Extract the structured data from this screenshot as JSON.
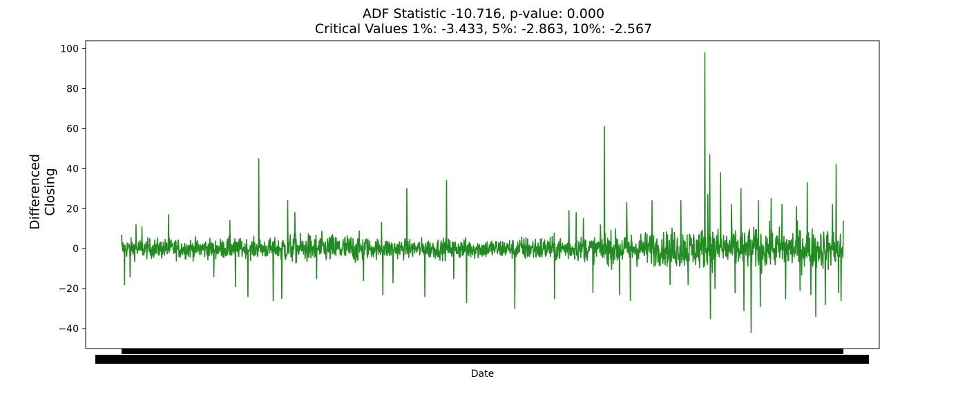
{
  "chart_data": {
    "type": "line",
    "title": [
      "ADF Statistic -10.716, p-value: 0.000",
      "Critical Values 1%: -3.433, 5%: -2.863, 10%: -2.567"
    ],
    "xlabel": "Date",
    "ylabel": [
      "Differenced",
      "Closing"
    ],
    "ylim": [
      -50,
      104
    ],
    "yticks": [
      -40,
      -20,
      0,
      20,
      40,
      60,
      80,
      100
    ],
    "ytick_labels": [
      "−40",
      "−20",
      "0",
      "20",
      "40",
      "60",
      "80",
      "100"
    ],
    "x_tick_labels_note": "x tick labels overlap into a solid black band (unreadable)",
    "grid": false,
    "color": "#228B22",
    "n_points": 2200,
    "noise_envelope": [
      {
        "from": 0.0,
        "to": 0.22,
        "amp": 4.5
      },
      {
        "from": 0.22,
        "to": 0.34,
        "amp": 6.5
      },
      {
        "from": 0.34,
        "to": 0.55,
        "amp": 4.5
      },
      {
        "from": 0.55,
        "to": 0.66,
        "amp": 5.5
      },
      {
        "from": 0.66,
        "to": 0.76,
        "amp": 7.5
      },
      {
        "from": 0.76,
        "to": 1.0,
        "amp": 9.0
      }
    ],
    "spikes": [
      {
        "x": 0.0,
        "y": 7
      },
      {
        "x": 0.004,
        "y": 14
      },
      {
        "x": 0.004,
        "y": -18
      },
      {
        "x": 0.012,
        "y": -14
      },
      {
        "x": 0.02,
        "y": 12
      },
      {
        "x": 0.028,
        "y": 11
      },
      {
        "x": 0.065,
        "y": 17
      },
      {
        "x": 0.128,
        "y": -14
      },
      {
        "x": 0.15,
        "y": 14
      },
      {
        "x": 0.158,
        "y": -19
      },
      {
        "x": 0.175,
        "y": -24
      },
      {
        "x": 0.19,
        "y": 45
      },
      {
        "x": 0.21,
        "y": -26
      },
      {
        "x": 0.222,
        "y": -25
      },
      {
        "x": 0.23,
        "y": 24
      },
      {
        "x": 0.24,
        "y": 18
      },
      {
        "x": 0.27,
        "y": -15
      },
      {
        "x": 0.335,
        "y": -16
      },
      {
        "x": 0.36,
        "y": 13
      },
      {
        "x": 0.362,
        "y": -23
      },
      {
        "x": 0.376,
        "y": -17
      },
      {
        "x": 0.395,
        "y": 30
      },
      {
        "x": 0.42,
        "y": -24
      },
      {
        "x": 0.45,
        "y": 34
      },
      {
        "x": 0.46,
        "y": -15
      },
      {
        "x": 0.478,
        "y": -27
      },
      {
        "x": 0.545,
        "y": -30
      },
      {
        "x": 0.6,
        "y": -25
      },
      {
        "x": 0.62,
        "y": 19
      },
      {
        "x": 0.63,
        "y": 18
      },
      {
        "x": 0.64,
        "y": 15
      },
      {
        "x": 0.653,
        "y": -22
      },
      {
        "x": 0.669,
        "y": 61
      },
      {
        "x": 0.69,
        "y": -23
      },
      {
        "x": 0.7,
        "y": 23
      },
      {
        "x": 0.705,
        "y": -26
      },
      {
        "x": 0.735,
        "y": 24
      },
      {
        "x": 0.76,
        "y": -18
      },
      {
        "x": 0.775,
        "y": 24
      },
      {
        "x": 0.785,
        "y": -18
      },
      {
        "x": 0.808,
        "y": 98
      },
      {
        "x": 0.812,
        "y": 27
      },
      {
        "x": 0.815,
        "y": 47
      },
      {
        "x": 0.816,
        "y": -35
      },
      {
        "x": 0.822,
        "y": -20
      },
      {
        "x": 0.83,
        "y": 38
      },
      {
        "x": 0.845,
        "y": 22
      },
      {
        "x": 0.85,
        "y": -22
      },
      {
        "x": 0.858,
        "y": 30
      },
      {
        "x": 0.862,
        "y": -31
      },
      {
        "x": 0.872,
        "y": -42
      },
      {
        "x": 0.882,
        "y": 24
      },
      {
        "x": 0.885,
        "y": -29
      },
      {
        "x": 0.9,
        "y": 25
      },
      {
        "x": 0.915,
        "y": 22
      },
      {
        "x": 0.92,
        "y": -25
      },
      {
        "x": 0.935,
        "y": 21
      },
      {
        "x": 0.94,
        "y": -21
      },
      {
        "x": 0.95,
        "y": 33
      },
      {
        "x": 0.955,
        "y": -23
      },
      {
        "x": 0.962,
        "y": -34
      },
      {
        "x": 0.975,
        "y": -28
      },
      {
        "x": 0.985,
        "y": 22
      },
      {
        "x": 0.99,
        "y": 42
      },
      {
        "x": 0.993,
        "y": -22
      },
      {
        "x": 0.997,
        "y": -26
      },
      {
        "x": 1.0,
        "y": 14
      }
    ]
  }
}
